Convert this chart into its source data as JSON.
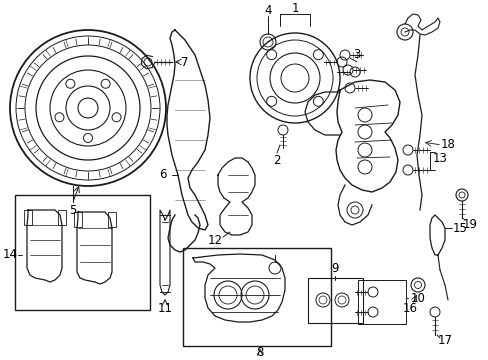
{
  "background_color": "#ffffff",
  "line_color": "#1a1a1a",
  "text_color": "#000000",
  "font_size": 8.5,
  "fig_w": 4.89,
  "fig_h": 3.6,
  "dpi": 100
}
